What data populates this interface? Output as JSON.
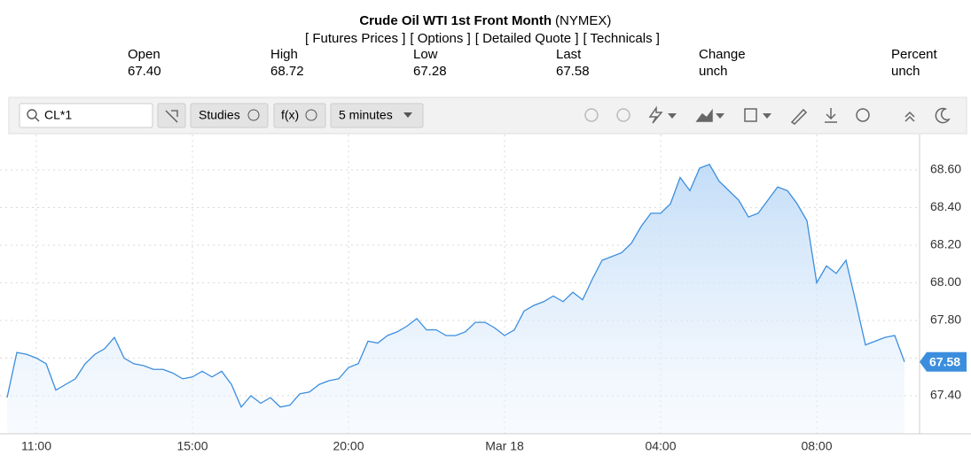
{
  "header": {
    "title": "Crude Oil WTI 1st Front Month",
    "exchange": "(NYMEX)",
    "links": [
      "[ Futures Prices ]",
      "[ Options ]",
      "[ Detailed Quote ]",
      "[ Technicals ]"
    ],
    "stats": [
      {
        "label": "Open",
        "value": "67.40"
      },
      {
        "label": "High",
        "value": "68.72"
      },
      {
        "label": "Low",
        "value": "67.28"
      },
      {
        "label": "Last",
        "value": "67.58"
      },
      {
        "label": "Change",
        "value": "unch"
      },
      {
        "label": "Percent",
        "value": "unch"
      }
    ]
  },
  "toolbar": {
    "symbol": "CL*1",
    "studies": "Studies",
    "fx": "f(x)",
    "interval": "5 minutes"
  },
  "chart_data": {
    "type": "line",
    "categories": [
      null,
      null,
      null,
      "11:00",
      null,
      null,
      null,
      null,
      null,
      null,
      null,
      null,
      null,
      null,
      null,
      null,
      null,
      null,
      null,
      "15:00",
      null,
      null,
      null,
      null,
      null,
      null,
      null,
      null,
      null,
      null,
      null,
      null,
      null,
      null,
      null,
      "20:00",
      null,
      null,
      null,
      null,
      null,
      null,
      null,
      null,
      null,
      null,
      null,
      null,
      null,
      null,
      null,
      "Mar 18",
      null,
      null,
      null,
      null,
      null,
      null,
      null,
      null,
      null,
      null,
      null,
      null,
      null,
      null,
      null,
      "04:00",
      null,
      null,
      null,
      null,
      null,
      null,
      null,
      null,
      null,
      null,
      null,
      null,
      null,
      null,
      null,
      "08:00",
      null,
      null,
      null,
      null,
      null,
      null,
      null,
      null,
      null
    ],
    "series": [
      {
        "color": "#3b8ede",
        "values": [
          67.39,
          67.63,
          67.62,
          67.6,
          67.57,
          67.43,
          67.46,
          67.49,
          67.57,
          67.62,
          67.65,
          67.71,
          67.6,
          67.57,
          67.56,
          67.54,
          67.54,
          67.52,
          67.49,
          67.5,
          67.53,
          67.5,
          67.53,
          67.46,
          67.34,
          67.4,
          67.36,
          67.39,
          67.34,
          67.35,
          67.41,
          67.42,
          67.46,
          67.48,
          67.49,
          67.55,
          67.57,
          67.69,
          67.68,
          67.72,
          67.74,
          67.77,
          67.81,
          67.75,
          67.75,
          67.72,
          67.72,
          67.74,
          67.79,
          67.79,
          67.76,
          67.72,
          67.75,
          67.85,
          67.88,
          67.9,
          67.93,
          67.9,
          67.95,
          67.91,
          68.02,
          68.12,
          68.14,
          68.16,
          68.21,
          68.3,
          68.37,
          68.37,
          68.42,
          68.56,
          68.49,
          68.61,
          68.63,
          68.54,
          68.49,
          68.44,
          68.35,
          68.37,
          68.44,
          68.51,
          68.49,
          68.42,
          68.33,
          68.0,
          68.09,
          68.05,
          68.12,
          67.9,
          67.67,
          67.69,
          67.71,
          67.72,
          67.58
        ]
      }
    ],
    "ylim": [
      67.2,
      68.78
    ],
    "yticks": [
      {
        "value": 67.4,
        "label": "67.40"
      },
      {
        "value": 67.6,
        "label": "67.60"
      },
      {
        "value": 67.8,
        "label": "67.80"
      },
      {
        "value": 68.0,
        "label": "68.00"
      },
      {
        "value": 68.2,
        "label": "68.20"
      },
      {
        "value": 68.4,
        "label": "68.40"
      },
      {
        "value": 68.6,
        "label": "68.60"
      }
    ],
    "current_price": {
      "value": 67.58,
      "label": "67.58"
    },
    "grid": true
  }
}
